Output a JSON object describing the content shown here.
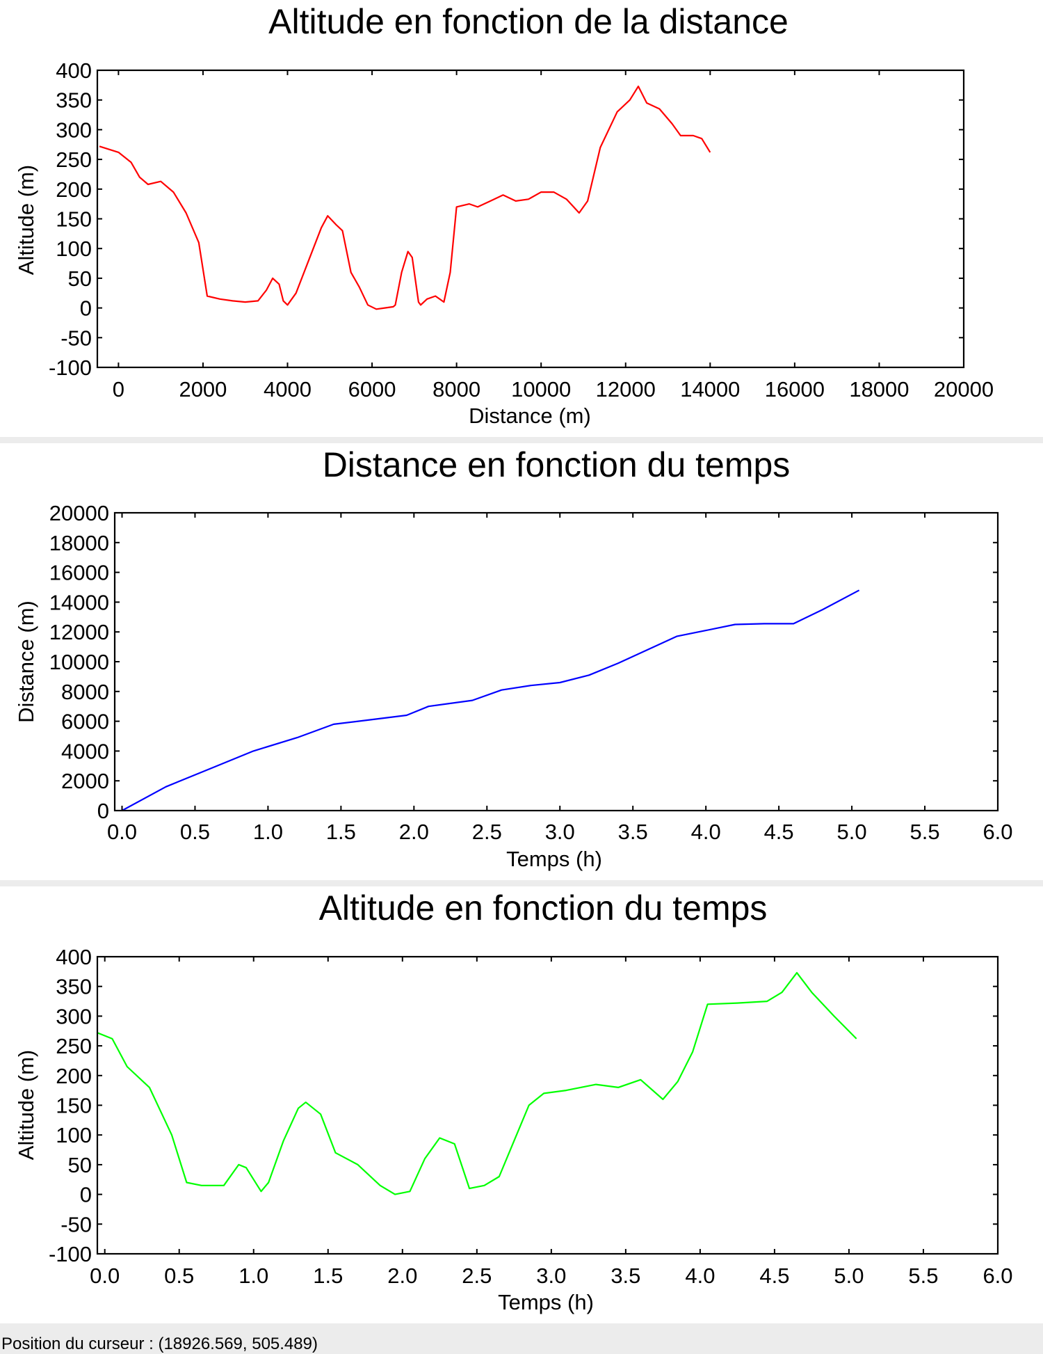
{
  "chart_data": [
    {
      "type": "line",
      "title": "Altitude en fonction de la distance",
      "xlabel": "Distance (m)",
      "ylabel": "Altitude (m)",
      "xlim": [
        -500,
        20000
      ],
      "ylim": [
        -100,
        400
      ],
      "xticks": [
        0,
        2000,
        4000,
        6000,
        8000,
        10000,
        12000,
        14000,
        16000,
        18000,
        20000
      ],
      "yticks": [
        -100,
        -50,
        0,
        50,
        100,
        150,
        200,
        250,
        300,
        350,
        400
      ],
      "xtick_labels": [
        "0",
        "2000",
        "4000",
        "6000",
        "8000",
        "10000",
        "12000",
        "14000",
        "16000",
        "18000",
        "20000"
      ],
      "ytick_labels": [
        "-100",
        "-50",
        "0",
        "50",
        "100",
        "150",
        "200",
        "250",
        "300",
        "350",
        "400"
      ],
      "grid": false,
      "series": [
        {
          "color": "#ff0000",
          "x": [
            -450,
            0,
            300,
            500,
            700,
            1000,
            1300,
            1600,
            1900,
            2100,
            2400,
            2700,
            3000,
            3300,
            3500,
            3650,
            3800,
            3900,
            4000,
            4200,
            4500,
            4800,
            4950,
            5150,
            5300,
            5500,
            5700,
            5900,
            6100,
            6300,
            6500,
            6550,
            6700,
            6850,
            6950,
            7100,
            7150,
            7300,
            7500,
            7700,
            7850,
            8000,
            8300,
            8500,
            8800,
            9100,
            9400,
            9700,
            10000,
            10300,
            10600,
            10900,
            11100,
            11400,
            11800,
            12100,
            12300,
            12500,
            12800,
            13100,
            13300,
            13600,
            13800,
            14000
          ],
          "y": [
            272,
            262,
            245,
            220,
            208,
            213,
            195,
            160,
            110,
            20,
            15,
            12,
            10,
            12,
            30,
            50,
            40,
            12,
            5,
            25,
            80,
            135,
            155,
            140,
            130,
            60,
            35,
            5,
            -2,
            0,
            2,
            5,
            60,
            95,
            85,
            10,
            5,
            15,
            20,
            10,
            60,
            170,
            175,
            170,
            180,
            190,
            180,
            183,
            195,
            195,
            183,
            160,
            180,
            270,
            330,
            350,
            373,
            345,
            335,
            310,
            290,
            290,
            285,
            262
          ]
        }
      ]
    },
    {
      "type": "line",
      "title": "Distance en fonction du temps",
      "xlabel": "Temps (h)",
      "ylabel": "Distance (m)",
      "xlim": [
        -0.05,
        6.0
      ],
      "ylim": [
        0,
        20000
      ],
      "xticks": [
        0.0,
        0.5,
        1.0,
        1.5,
        2.0,
        2.5,
        3.0,
        3.5,
        4.0,
        4.5,
        5.0,
        5.5,
        6.0
      ],
      "yticks": [
        0,
        2000,
        4000,
        6000,
        8000,
        10000,
        12000,
        14000,
        16000,
        18000,
        20000
      ],
      "xtick_labels": [
        "0.0",
        "0.5",
        "1.0",
        "1.5",
        "2.0",
        "2.5",
        "3.0",
        "3.5",
        "4.0",
        "4.5",
        "5.0",
        "5.5",
        "6.0"
      ],
      "ytick_labels": [
        "0",
        "2000",
        "4000",
        "6000",
        "8000",
        "10000",
        "12000",
        "14000",
        "16000",
        "18000",
        "20000"
      ],
      "grid": false,
      "series": [
        {
          "color": "#0000ff",
          "x": [
            0.0,
            0.3,
            0.6,
            0.9,
            1.2,
            1.45,
            1.7,
            1.95,
            2.1,
            2.4,
            2.6,
            2.8,
            3.0,
            3.2,
            3.4,
            3.6,
            3.8,
            4.0,
            4.2,
            4.4,
            4.6,
            4.8,
            5.05
          ],
          "y": [
            0,
            1600,
            2800,
            4000,
            4900,
            5800,
            6100,
            6400,
            7000,
            7400,
            8100,
            8400,
            8600,
            9100,
            9900,
            10800,
            11700,
            12100,
            12500,
            12550,
            12550,
            13500,
            14800
          ]
        }
      ]
    },
    {
      "type": "line",
      "title": "Altitude en fonction du temps",
      "xlabel": "Temps (h)",
      "ylabel": "Altitude (m)",
      "xlim": [
        -0.05,
        6.0
      ],
      "ylim": [
        -100,
        400
      ],
      "xticks": [
        0.0,
        0.5,
        1.0,
        1.5,
        2.0,
        2.5,
        3.0,
        3.5,
        4.0,
        4.5,
        5.0,
        5.5,
        6.0
      ],
      "yticks": [
        -100,
        -50,
        0,
        50,
        100,
        150,
        200,
        250,
        300,
        350,
        400
      ],
      "xtick_labels": [
        "0.0",
        "0.5",
        "1.0",
        "1.5",
        "2.0",
        "2.5",
        "3.0",
        "3.5",
        "4.0",
        "4.5",
        "5.0",
        "5.5",
        "6.0"
      ],
      "ytick_labels": [
        "-100",
        "-50",
        "0",
        "50",
        "100",
        "150",
        "200",
        "250",
        "300",
        "350",
        "400"
      ],
      "grid": false,
      "series": [
        {
          "color": "#00ff00",
          "x": [
            -0.05,
            0.05,
            0.15,
            0.3,
            0.45,
            0.55,
            0.65,
            0.8,
            0.9,
            0.95,
            1.05,
            1.1,
            1.2,
            1.3,
            1.35,
            1.45,
            1.55,
            1.7,
            1.85,
            1.95,
            2.05,
            2.15,
            2.25,
            2.35,
            2.45,
            2.55,
            2.65,
            2.75,
            2.85,
            2.95,
            3.1,
            3.3,
            3.45,
            3.6,
            3.75,
            3.85,
            3.95,
            4.05,
            4.25,
            4.45,
            4.55,
            4.65,
            4.75,
            4.9,
            5.05
          ],
          "y": [
            272,
            262,
            215,
            180,
            100,
            20,
            15,
            15,
            50,
            45,
            5,
            20,
            90,
            145,
            155,
            135,
            70,
            50,
            15,
            0,
            5,
            60,
            95,
            85,
            10,
            15,
            30,
            90,
            150,
            170,
            175,
            185,
            180,
            193,
            160,
            190,
            240,
            320,
            322,
            325,
            340,
            373,
            340,
            300,
            262
          ]
        }
      ]
    }
  ],
  "status_bar": {
    "text": "Position du curseur : (18926.569, 505.489)"
  }
}
